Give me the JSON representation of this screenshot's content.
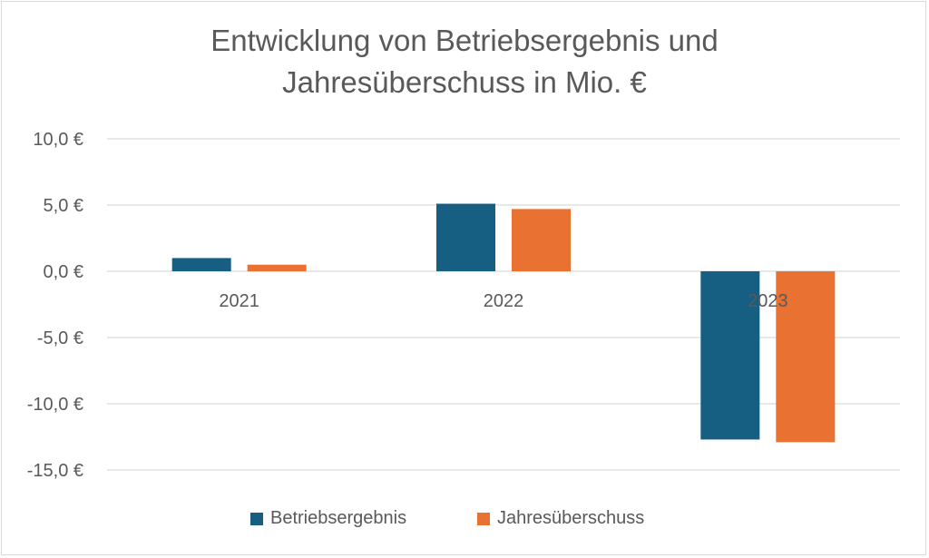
{
  "chart_data": {
    "type": "bar",
    "title_lines": [
      "Entwicklung von Betriebsergebnis und",
      "Jahresüberschuss in Mio. €"
    ],
    "categories": [
      "2021",
      "2022",
      "2023"
    ],
    "series": [
      {
        "name": "Betriebsergebnis",
        "color": "#175F82",
        "values": [
          1.0,
          5.1,
          -12.7
        ]
      },
      {
        "name": "Jahresüberschuss",
        "color": "#E97132",
        "values": [
          0.5,
          4.7,
          -12.9
        ]
      }
    ],
    "ylim": [
      -15,
      10
    ],
    "yticks": [
      10,
      5,
      0,
      -5,
      -10,
      -15
    ],
    "ytick_labels": [
      "10,0 €",
      "5,0 €",
      "0,0 €",
      "-5,0 €",
      "-10,0 €",
      "-15,0 €"
    ],
    "grid": true,
    "legend_position": "bottom"
  }
}
